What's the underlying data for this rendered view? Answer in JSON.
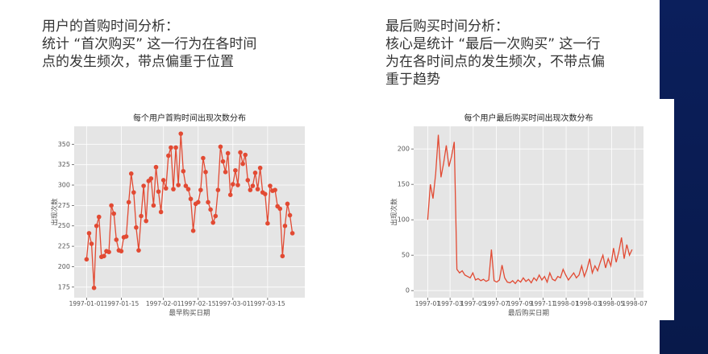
{
  "slide": {
    "left_text": [
      "用户的首购时间分析：",
      "统计 “首次购买” 这一行为在各时间",
      "点的发生频次，带点偏重于位置"
    ],
    "right_text": [
      "最后购买时间分析：",
      "核心是统计 “最后一次购买” 这一行",
      "为在各时间点的发生频次，不带点偏",
      "重于趋势"
    ]
  },
  "chart_data": [
    {
      "type": "line",
      "title": "每个用户首购时间出现次数分布",
      "x_label": "最早购买日期",
      "y_label": "出现次数",
      "marker": "o",
      "grid": true,
      "x": [
        "1997-01-01",
        "1997-01-02",
        "1997-01-03",
        "1997-01-04",
        "1997-01-05",
        "1997-01-06",
        "1997-01-07",
        "1997-01-08",
        "1997-01-09",
        "1997-01-10",
        "1997-01-11",
        "1997-01-12",
        "1997-01-13",
        "1997-01-14",
        "1997-01-15",
        "1997-01-16",
        "1997-01-17",
        "1997-01-18",
        "1997-01-19",
        "1997-01-20",
        "1997-01-21",
        "1997-01-22",
        "1997-01-23",
        "1997-01-24",
        "1997-01-25",
        "1997-01-26",
        "1997-01-27",
        "1997-01-28",
        "1997-01-29",
        "1997-01-30",
        "1997-01-31",
        "1997-02-01",
        "1997-02-02",
        "1997-02-03",
        "1997-02-04",
        "1997-02-05",
        "1997-02-06",
        "1997-02-07",
        "1997-02-08",
        "1997-02-09",
        "1997-02-10",
        "1997-02-11",
        "1997-02-12",
        "1997-02-13",
        "1997-02-14",
        "1997-02-15",
        "1997-02-16",
        "1997-02-17",
        "1997-02-18",
        "1997-02-19",
        "1997-02-20",
        "1997-02-21",
        "1997-02-22",
        "1997-02-23",
        "1997-02-24",
        "1997-02-25",
        "1997-02-26",
        "1997-02-27",
        "1997-02-28",
        "1997-03-01",
        "1997-03-02",
        "1997-03-03",
        "1997-03-04",
        "1997-03-05",
        "1997-03-06",
        "1997-03-07",
        "1997-03-08",
        "1997-03-09",
        "1997-03-10",
        "1997-03-11",
        "1997-03-12",
        "1997-03-13",
        "1997-03-14",
        "1997-03-15",
        "1997-03-16",
        "1997-03-17",
        "1997-03-18",
        "1997-03-19",
        "1997-03-20",
        "1997-03-21",
        "1997-03-22",
        "1997-03-23",
        "1997-03-24",
        "1997-03-25"
      ],
      "series": [
        {
          "name": "出现次数",
          "color": "#e24a33",
          "values": [
            209,
            241,
            228,
            174,
            250,
            261,
            212,
            213,
            219,
            218,
            275,
            265,
            233,
            220,
            219,
            236,
            237,
            279,
            314,
            291,
            248,
            220,
            262,
            299,
            256,
            305,
            308,
            275,
            322,
            292,
            267,
            306,
            296,
            336,
            346,
            295,
            346,
            300,
            363,
            317,
            299,
            295,
            283,
            244,
            277,
            279,
            294,
            333,
            316,
            279,
            270,
            254,
            262,
            294,
            347,
            329,
            316,
            339,
            288,
            301,
            318,
            300,
            340,
            326,
            337,
            306,
            294,
            299,
            315,
            295,
            321,
            291,
            289,
            253,
            299,
            293,
            294,
            274,
            271,
            213,
            250,
            277,
            263,
            241
          ]
        }
      ],
      "xlim": [
        "1996-12-27",
        "1997-03-30"
      ],
      "xticks": [
        "1997-01-01",
        "1997-01-15",
        "1997-02-01",
        "1997-02-15",
        "1997-03-01",
        "1997-03-15"
      ],
      "ylim": [
        162,
        372
      ],
      "yticks": [
        175,
        200,
        225,
        250,
        275,
        300,
        325,
        350
      ]
    },
    {
      "type": "line",
      "title": "每个用户最后购买时间出现次数分布",
      "x_label": "最后购买日期",
      "y_label": "出现次数",
      "grid": true,
      "x": [
        "1997-01-01",
        "1997-01-08",
        "1997-01-15",
        "1997-01-22",
        "1997-01-29",
        "1997-02-05",
        "1997-02-12",
        "1997-02-19",
        "1997-02-26",
        "1997-03-05",
        "1997-03-12",
        "1997-03-19",
        "1997-03-26",
        "1997-04-02",
        "1997-04-09",
        "1997-04-16",
        "1997-04-23",
        "1997-04-30",
        "1997-05-07",
        "1997-05-14",
        "1997-05-21",
        "1997-05-28",
        "1997-06-04",
        "1997-06-11",
        "1997-06-18",
        "1997-06-25",
        "1997-07-02",
        "1997-07-09",
        "1997-07-16",
        "1997-07-23",
        "1997-07-30",
        "1997-08-06",
        "1997-08-13",
        "1997-08-20",
        "1997-08-27",
        "1997-09-03",
        "1997-09-10",
        "1997-09-17",
        "1997-09-24",
        "1997-10-01",
        "1997-10-08",
        "1997-10-15",
        "1997-10-22",
        "1997-10-29",
        "1997-11-05",
        "1997-11-12",
        "1997-11-19",
        "1997-11-26",
        "1997-12-03",
        "1997-12-10",
        "1997-12-17",
        "1997-12-24",
        "1997-12-31",
        "1998-01-07",
        "1998-01-14",
        "1998-01-21",
        "1998-01-28",
        "1998-02-04",
        "1998-02-11",
        "1998-02-18",
        "1998-02-25",
        "1998-03-04",
        "1998-03-11",
        "1998-03-18",
        "1998-03-25",
        "1998-04-01",
        "1998-04-08",
        "1998-04-15",
        "1998-04-22",
        "1998-04-29",
        "1998-05-06",
        "1998-05-13",
        "1998-05-20",
        "1998-05-27",
        "1998-06-03",
        "1998-06-10",
        "1998-06-17",
        "1998-06-24"
      ],
      "series": [
        {
          "name": "出现次数",
          "color": "#e24a33",
          "values": [
            100,
            150,
            130,
            165,
            220,
            160,
            180,
            205,
            175,
            190,
            210,
            30,
            25,
            28,
            22,
            20,
            18,
            25,
            15,
            17,
            14,
            16,
            13,
            15,
            58,
            14,
            12,
            15,
            36,
            18,
            12,
            11,
            14,
            10,
            15,
            12,
            18,
            13,
            16,
            11,
            18,
            14,
            22,
            15,
            20,
            12,
            25,
            16,
            14,
            20,
            18,
            30,
            22,
            15,
            20,
            25,
            18,
            22,
            35,
            20,
            30,
            45,
            25,
            35,
            28,
            40,
            50,
            32,
            45,
            35,
            60,
            40,
            55,
            75,
            45,
            65,
            50,
            58
          ]
        }
      ],
      "xlim": [
        "1996-11-25",
        "1998-07-24"
      ],
      "xticks": [
        "1997-01",
        "1997-03",
        "1997-05",
        "1997-07",
        "1997-09",
        "1997-11",
        "1998-01",
        "1998-03",
        "1998-05",
        "1998-07"
      ],
      "ylim": [
        -10,
        232
      ],
      "yticks": [
        0,
        50,
        100,
        150,
        200
      ]
    }
  ]
}
